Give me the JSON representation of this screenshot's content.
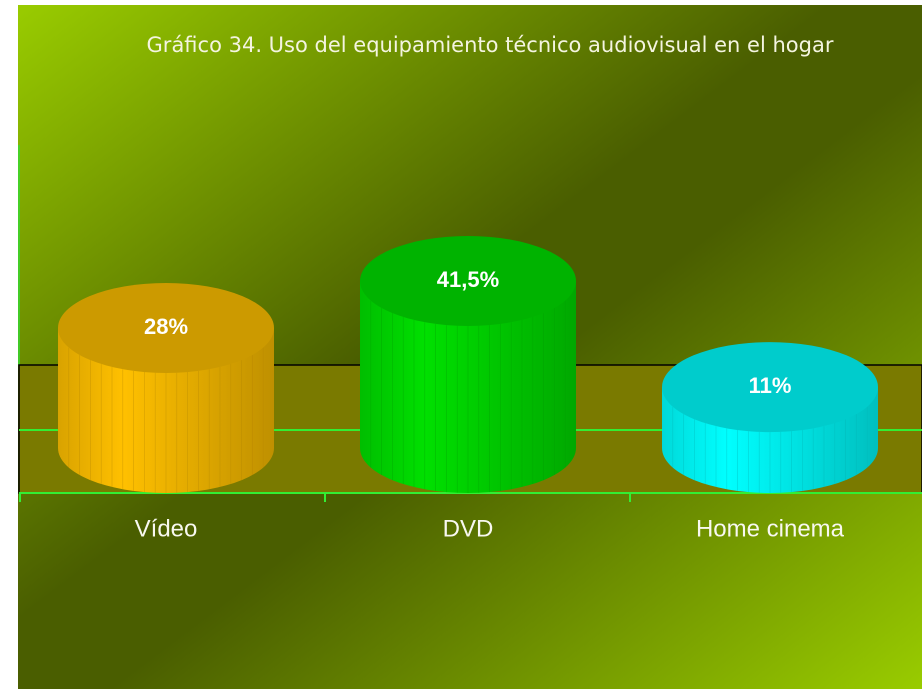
{
  "chart_data": {
    "type": "cylinder",
    "title": "Gráfico 34. Uso del equipamiento técnico audiovisual en el hogar",
    "categories": [
      "Vídeo",
      "DVD",
      "Home cinema"
    ],
    "values": [
      28,
      41.5,
      11
    ],
    "value_labels": [
      "28%",
      "41,5%",
      "11%"
    ],
    "colors": [
      "#ffc000",
      "#00e000",
      "#00ffff"
    ]
  }
}
